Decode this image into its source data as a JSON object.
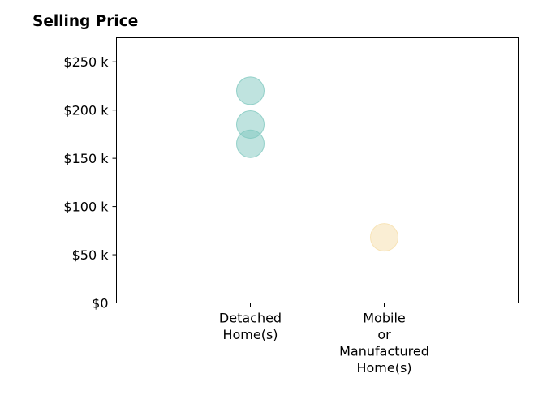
{
  "chart_data": {
    "type": "scatter",
    "title": "Selling Price",
    "xlabel": "",
    "ylabel": "",
    "categories": [
      [
        "Detached",
        "Home(s)"
      ],
      [
        "Mobile",
        "or",
        "Manufactured",
        "Home(s)"
      ]
    ],
    "x_range": [
      -1,
      2
    ],
    "y_tick_values": [
      0,
      50000,
      100000,
      150000,
      200000,
      250000
    ],
    "y_tick_labels": [
      "$0",
      "$50 k",
      "$100 k",
      "$150 k",
      "$200 k",
      "$250 k"
    ],
    "ylim": [
      0,
      275000
    ],
    "grid": false,
    "series": [
      {
        "category_index": 0,
        "color": "#7fc8bf",
        "points": [
          220000,
          185000,
          165000
        ]
      },
      {
        "category_index": 1,
        "color": "#f6deaa",
        "points": [
          68000
        ]
      }
    ]
  }
}
